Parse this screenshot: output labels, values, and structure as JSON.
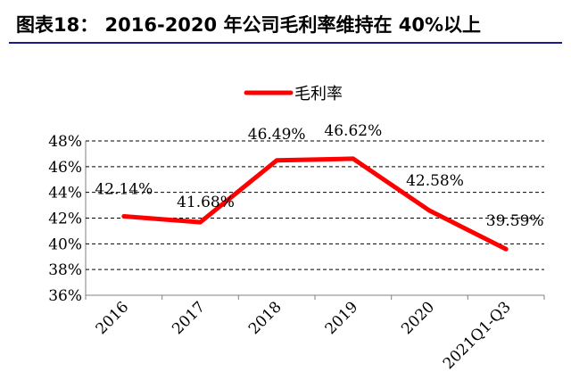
{
  "figure_title": "图表18：    2016-2020 年公司毛利率维持在 40%以上",
  "chart_data": {
    "type": "line",
    "title": "",
    "xlabel": "",
    "ylabel": "",
    "categories": [
      "2016",
      "2017",
      "2018",
      "2019",
      "2020",
      "2021Q1-Q3"
    ],
    "series": [
      {
        "name": "毛利率",
        "values": [
          42.14,
          41.68,
          46.49,
          46.62,
          42.58,
          39.59
        ],
        "data_labels": [
          "42.14%",
          "41.68%",
          "46.49%",
          "46.62%",
          "42.58%",
          "39.59%"
        ]
      }
    ],
    "y_ticks": [
      "36%",
      "38%",
      "40%",
      "42%",
      "44%",
      "46%",
      "48%"
    ],
    "ylim": [
      36,
      48
    ],
    "grid": "horizontal dashed",
    "legend_position": "top-center",
    "line_color": "#ff0000"
  }
}
